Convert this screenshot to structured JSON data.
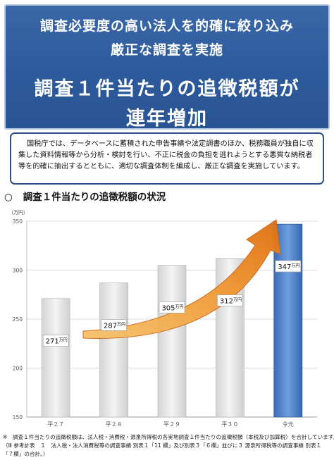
{
  "header": {
    "line1": "調査必要度の高い法人を的確に絞り込み",
    "line2": "厳正な調査を実施",
    "line3": "調査１件当たりの追徴税額が",
    "line4": "連年増加"
  },
  "description": "国税庁では、データベースに蓄積された申告事績や法定調書のほか、税務職員が独自に収集した資料情報等から分析・検討を行い、不正に税金の負担を逃れようとする悪質な納税者等を的確に抽出するとともに、適切な調査体制を編成し、厳正な調査を実施しています。",
  "section": {
    "mark": "○",
    "title": "調査１件当たりの追徴税額の状況"
  },
  "notes": {
    "line1": "※　調査１件当たりの追徴税額は、法人税・消費税・源泉所得税の各実地調査１件当たりの追徴税額（本税及び加算税）を合計しています。",
    "line2": "（Ⅲ 参考計表　１　法人税・法人消費税等の調査事績 別表１「11 欄」及び別表３「６欄」並びに３ 源泉所得税等の調査事績 別表１",
    "line3": "「７欄」の合計。）"
  },
  "colors": {
    "banner": "#2d5a9c",
    "bar_gray": "#e6e6e6",
    "bar_blue": "#4a7dc9",
    "arrow": "#e8821e"
  },
  "chart_data": {
    "type": "bar",
    "unit": "（万円）",
    "categories": [
      "平２７",
      "平２８",
      "平２９",
      "平３０",
      "令元"
    ],
    "values": [
      271,
      287,
      305,
      312,
      347
    ],
    "value_suffix": "万円",
    "ylim": [
      150,
      350
    ],
    "yticks": [
      150,
      200,
      250,
      300,
      350
    ],
    "highlight_index": 4,
    "grid": true,
    "annotation": "upward-trend-arrow"
  }
}
